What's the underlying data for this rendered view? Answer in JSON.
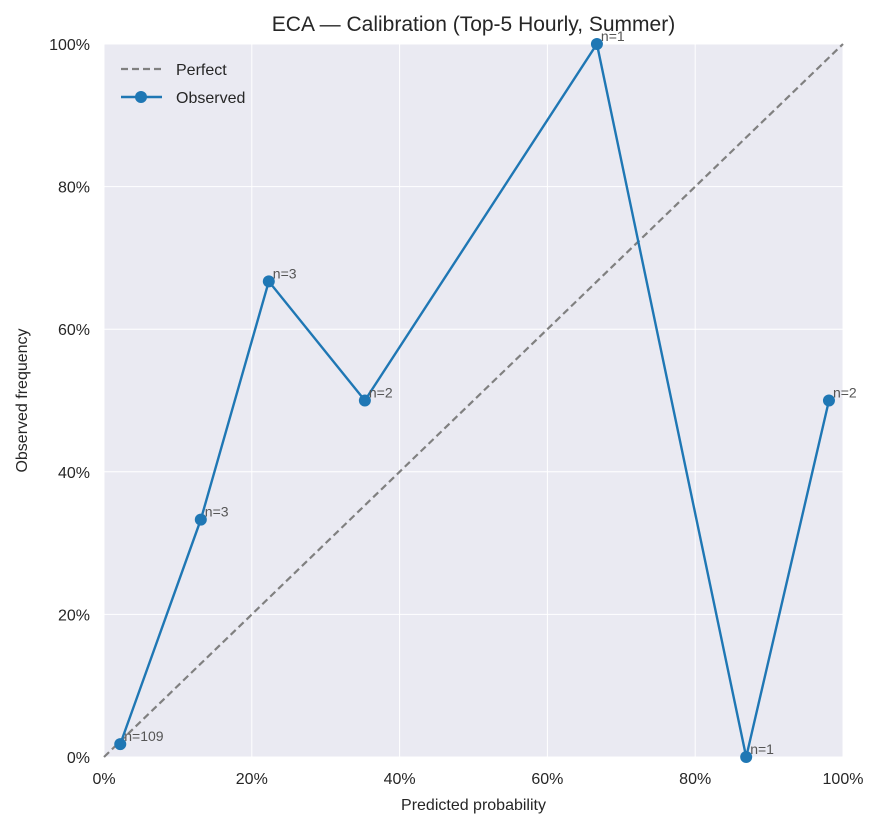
{
  "chart_data": {
    "type": "line",
    "title": "ECA — Calibration (Top-5 Hourly, Summer)",
    "xlabel": "Predicted probability",
    "ylabel": "Observed frequency",
    "xlim": [
      0,
      1
    ],
    "ylim": [
      0,
      1
    ],
    "x_ticks": [
      "0%",
      "20%",
      "40%",
      "60%",
      "80%",
      "100%"
    ],
    "y_ticks": [
      "0%",
      "20%",
      "40%",
      "60%",
      "80%",
      "100%"
    ],
    "grid": true,
    "legend_position": "top-left",
    "series": [
      {
        "name": "Perfect",
        "style": "dashed",
        "color": "#808080",
        "x": [
          0,
          1
        ],
        "y": [
          0,
          1
        ]
      },
      {
        "name": "Observed",
        "style": "solid-markers",
        "color": "#1f77b4",
        "x": [
          0.022,
          0.131,
          0.223,
          0.353,
          0.667,
          0.869,
          0.981
        ],
        "y": [
          0.018,
          0.333,
          0.667,
          0.5,
          1.0,
          0.0,
          0.5
        ],
        "labels": [
          "n=109",
          "n=3",
          "n=3",
          "n=2",
          "n=1",
          "n=1",
          "n=2"
        ]
      }
    ]
  }
}
